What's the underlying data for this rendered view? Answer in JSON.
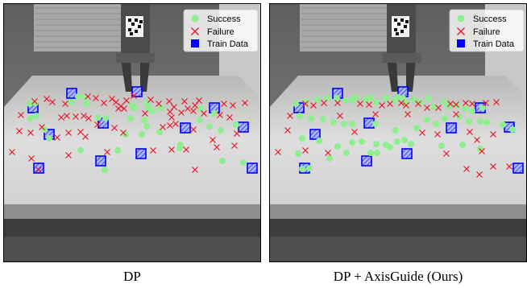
{
  "legend": {
    "success_label": "Success",
    "failure_label": "Failure",
    "train_label": "Train Data"
  },
  "colors": {
    "success": "#90ee90",
    "failure": "#e8182a",
    "train": "#0000ff"
  },
  "captions": {
    "left": "DP",
    "right": "DP + AxisGuide (Ours)"
  },
  "chart_data": [
    {
      "type": "scatter",
      "title": "DP",
      "xlim": [
        0,
        320
      ],
      "ylim": [
        0,
        322
      ],
      "series": [
        {
          "name": "Train Data",
          "marker": "square",
          "points": [
            [
              85,
              112
            ],
            [
              166,
              110
            ],
            [
              37,
              130
            ],
            [
              262,
              130
            ],
            [
              57,
              163
            ],
            [
              124,
              149
            ],
            [
              226,
              155
            ],
            [
              298,
              154
            ],
            [
              171,
              187
            ],
            [
              121,
              196
            ],
            [
              44,
              205
            ],
            [
              309,
              205
            ]
          ]
        },
        {
          "name": "Success",
          "marker": "circle",
          "points": [
            [
              33,
              125
            ],
            [
              40,
              124
            ],
            [
              84,
              123
            ],
            [
              93,
              116
            ],
            [
              102,
              117
            ],
            [
              103,
              125
            ],
            [
              160,
              127
            ],
            [
              163,
              130
            ],
            [
              178,
              124
            ],
            [
              180,
              130
            ],
            [
              185,
              134
            ],
            [
              196,
              130
            ],
            [
              245,
              131
            ],
            [
              34,
              143
            ],
            [
              41,
              140
            ],
            [
              51,
              157
            ],
            [
              57,
              168
            ],
            [
              118,
              142
            ],
            [
              127,
              143
            ],
            [
              158,
              143
            ],
            [
              175,
              145
            ],
            [
              178,
              153
            ],
            [
              244,
              145
            ],
            [
              262,
              137
            ],
            [
              256,
              153
            ],
            [
              270,
              158
            ],
            [
              289,
              151
            ],
            [
              152,
              163
            ],
            [
              172,
              163
            ],
            [
              194,
              160
            ],
            [
              220,
              176
            ],
            [
              96,
              183
            ],
            [
              142,
              183
            ],
            [
              272,
              196
            ],
            [
              298,
              198
            ],
            [
              126,
              207
            ],
            [
              219,
              180
            ]
          ]
        },
        {
          "name": "Failure",
          "marker": "x",
          "points": [
            [
              39,
              122
            ],
            [
              54,
              119
            ],
            [
              61,
              123
            ],
            [
              77,
              125
            ],
            [
              105,
              116
            ],
            [
              115,
              118
            ],
            [
              125,
              124
            ],
            [
              135,
              119
            ],
            [
              140,
              123
            ],
            [
              146,
              128
            ],
            [
              150,
              131
            ],
            [
              153,
              121
            ],
            [
              162,
              115
            ],
            [
              183,
              120
            ],
            [
              193,
              125
            ],
            [
              206,
              122
            ],
            [
              212,
              129
            ],
            [
              225,
              122
            ],
            [
              229,
              131
            ],
            [
              238,
              127
            ],
            [
              243,
              121
            ],
            [
              274,
              125
            ],
            [
              285,
              127
            ],
            [
              300,
              124
            ],
            [
              22,
              139
            ],
            [
              72,
              142
            ],
            [
              79,
              140
            ],
            [
              90,
              141
            ],
            [
              100,
              140
            ],
            [
              106,
              143
            ],
            [
              117,
              151
            ],
            [
              143,
              131
            ],
            [
              176,
              137
            ],
            [
              207,
              135
            ],
            [
              209,
              142
            ],
            [
              221,
              136
            ],
            [
              236,
              134
            ],
            [
              249,
              137
            ],
            [
              269,
              139
            ],
            [
              281,
              142
            ],
            [
              20,
              159
            ],
            [
              34,
              161
            ],
            [
              48,
              154
            ],
            [
              67,
              167
            ],
            [
              81,
              161
            ],
            [
              96,
              160
            ],
            [
              102,
              166
            ],
            [
              138,
              155
            ],
            [
              149,
              161
            ],
            [
              198,
              154
            ],
            [
              207,
              152
            ],
            [
              214,
              150
            ],
            [
              236,
              157
            ],
            [
              260,
              170
            ],
            [
              290,
              162
            ],
            [
              11,
              185
            ],
            [
              35,
              193
            ],
            [
              81,
              189
            ],
            [
              129,
              185
            ],
            [
              186,
              183
            ],
            [
              209,
              182
            ],
            [
              227,
              182
            ],
            [
              265,
              179
            ],
            [
              287,
              177
            ],
            [
              44,
              207
            ],
            [
              238,
              207
            ]
          ]
        }
      ]
    },
    {
      "type": "scatter",
      "title": "DP + AxisGuide (Ours)",
      "xlim": [
        0,
        320
      ],
      "ylim": [
        0,
        322
      ],
      "series": [
        {
          "name": "Train Data",
          "marker": "square",
          "points": [
            [
              85,
              112
            ],
            [
              166,
              110
            ],
            [
              37,
              130
            ],
            [
              262,
              130
            ],
            [
              57,
              163
            ],
            [
              124,
              149
            ],
            [
              226,
              155
            ],
            [
              298,
              154
            ],
            [
              171,
              187
            ],
            [
              121,
              196
            ],
            [
              44,
              205
            ],
            [
              309,
              205
            ]
          ]
        },
        {
          "name": "Success",
          "marker": "circle",
          "points": [
            [
              33,
              125
            ],
            [
              46,
              122
            ],
            [
              60,
              120
            ],
            [
              72,
              118
            ],
            [
              84,
              118
            ],
            [
              95,
              121
            ],
            [
              103,
              120
            ],
            [
              108,
              117
            ],
            [
              120,
              120
            ],
            [
              126,
              117
            ],
            [
              133,
              123
            ],
            [
              145,
              118
            ],
            [
              155,
              121
            ],
            [
              160,
              117
            ],
            [
              166,
              118
            ],
            [
              170,
              124
            ],
            [
              180,
              120
            ],
            [
              188,
              123
            ],
            [
              198,
              118
            ],
            [
              204,
              129
            ],
            [
              218,
              123
            ],
            [
              223,
              128
            ],
            [
              233,
              127
            ],
            [
              243,
              131
            ],
            [
              252,
              134
            ],
            [
              265,
              130
            ],
            [
              38,
              140
            ],
            [
              52,
              143
            ],
            [
              67,
              144
            ],
            [
              80,
              148
            ],
            [
              93,
              150
            ],
            [
              103,
              150
            ],
            [
              132,
              150
            ],
            [
              157,
              158
            ],
            [
              183,
              155
            ],
            [
              196,
              145
            ],
            [
              207,
              150
            ],
            [
              218,
              143
            ],
            [
              236,
              141
            ],
            [
              248,
              147
            ],
            [
              262,
              147
            ],
            [
              270,
              148
            ],
            [
              290,
              151
            ],
            [
              302,
              157
            ],
            [
              41,
              168
            ],
            [
              62,
              171
            ],
            [
              85,
              178
            ],
            [
              103,
              173
            ],
            [
              115,
              172
            ],
            [
              133,
              175
            ],
            [
              145,
              176
            ],
            [
              159,
              172
            ],
            [
              176,
              175
            ],
            [
              214,
              177
            ],
            [
              36,
              187
            ],
            [
              75,
              193
            ],
            [
              96,
              186
            ],
            [
              126,
              186
            ],
            [
              134,
              186
            ],
            [
              150,
              179
            ],
            [
              168,
              170
            ],
            [
              240,
              176
            ],
            [
              262,
              181
            ],
            [
              41,
              206
            ],
            [
              50,
              205
            ]
          ]
        },
        {
          "name": "Failure",
          "marker": "x",
          "points": [
            [
              45,
              125
            ],
            [
              55,
              127
            ],
            [
              68,
              124
            ],
            [
              85,
              124
            ],
            [
              113,
              125
            ],
            [
              124,
              126
            ],
            [
              140,
              127
            ],
            [
              150,
              125
            ],
            [
              164,
              124
            ],
            [
              170,
              127
            ],
            [
              185,
              125
            ],
            [
              196,
              130
            ],
            [
              210,
              130
            ],
            [
              225,
              125
            ],
            [
              232,
              126
            ],
            [
              244,
              124
            ],
            [
              252,
              125
            ],
            [
              269,
              124
            ],
            [
              282,
              123
            ],
            [
              26,
              140
            ],
            [
              88,
              140
            ],
            [
              132,
              138
            ],
            [
              172,
              138
            ],
            [
              232,
              138
            ],
            [
              23,
              158
            ],
            [
              106,
              160
            ],
            [
              190,
              161
            ],
            [
              209,
              163
            ],
            [
              249,
              160
            ],
            [
              258,
              170
            ],
            [
              278,
              163
            ],
            [
              11,
              185
            ],
            [
              45,
              183
            ],
            [
              73,
              186
            ],
            [
              220,
              187
            ],
            [
              264,
              184
            ],
            [
              278,
              203
            ],
            [
              245,
              206
            ],
            [
              261,
              213
            ],
            [
              298,
              203
            ]
          ]
        }
      ]
    }
  ]
}
